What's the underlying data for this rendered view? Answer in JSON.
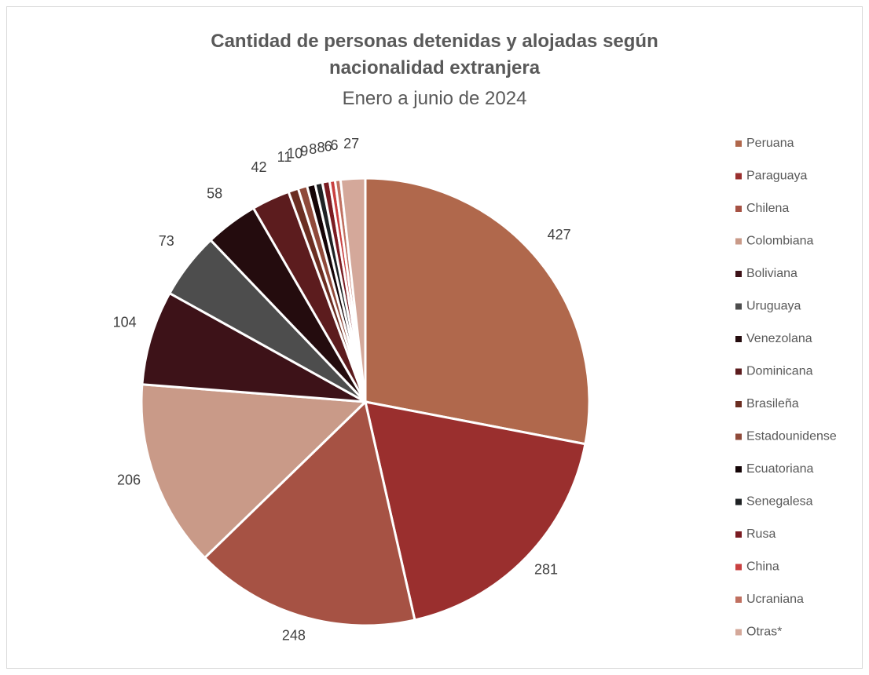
{
  "chart_data": {
    "type": "pie",
    "title": "Cantidad de personas detenidas y alojadas según nacionalidad extranjera",
    "subtitle": "Enero a junio de 2024",
    "categories": [
      "Peruana",
      "Paraguaya",
      "Chilena",
      "Colombiana",
      "Boliviana",
      "Uruguaya",
      "Venezolana",
      "Dominicana",
      "Brasileña",
      "Estadounidense",
      "Ecuatoriana",
      "Senegalesa",
      "Rusa",
      "China",
      "Ucraniana",
      "Otras*"
    ],
    "values": [
      427,
      281,
      248,
      206,
      104,
      73,
      58,
      42,
      11,
      10,
      9,
      8,
      8,
      6,
      6,
      27
    ],
    "colors": [
      "#b0684c",
      "#9a2f2e",
      "#a65244",
      "#c99a88",
      "#3d1218",
      "#4d4d4d",
      "#240c0e",
      "#5c1c1e",
      "#6b2e22",
      "#8f4a3a",
      "#140406",
      "#1f2224",
      "#7a1c22",
      "#c94040",
      "#c07060",
      "#d4a89a"
    ],
    "legend": "right"
  }
}
